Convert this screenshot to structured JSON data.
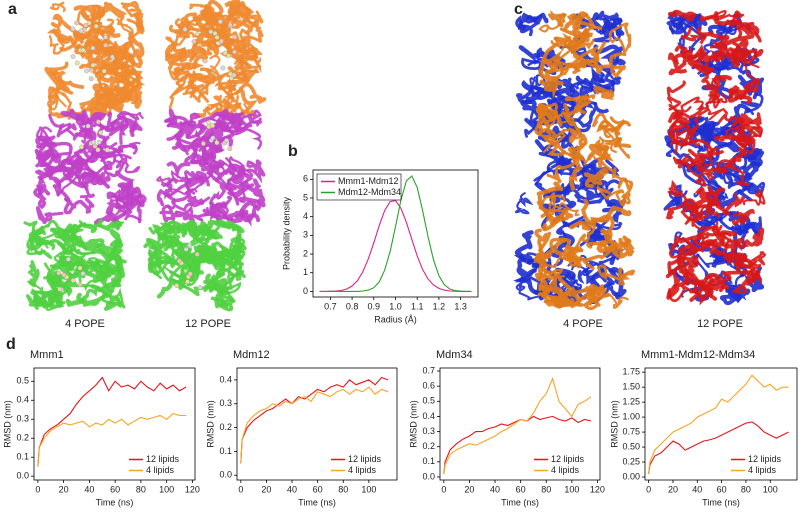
{
  "panel_labels": [
    "a",
    "b",
    "c",
    "d"
  ],
  "structure_labels": [
    "4 POPE",
    "12 POPE",
    "4 POPE",
    "12 POPE"
  ],
  "chart_data": [
    {
      "type": "line",
      "y_label": "Probability density",
      "x_label": "Radius (Å)",
      "legend": "upper left",
      "x": [
        0.65,
        0.675,
        0.7,
        0.725,
        0.75,
        0.775,
        0.8,
        0.825,
        0.85,
        0.875,
        0.9,
        0.925,
        0.95,
        0.975,
        1.0,
        1.025,
        1.05,
        1.075,
        1.1,
        1.125,
        1.15,
        1.175,
        1.2,
        1.225,
        1.25,
        1.275,
        1.3,
        1.325,
        1.35
      ],
      "series": [
        {
          "name": "Mmm1-Mdm12",
          "color": "#e0208a",
          "values": [
            0,
            0,
            0.01,
            0.02,
            0.05,
            0.13,
            0.29,
            0.58,
            1.06,
            1.75,
            2.6,
            3.52,
            4.32,
            4.81,
            4.86,
            4.45,
            3.7,
            2.79,
            1.9,
            1.18,
            0.66,
            0.34,
            0.16,
            0.07,
            0.02,
            0.01,
            0,
            0,
            0
          ]
        },
        {
          "name": "Mdm12-Mdm34",
          "color": "#2ca02c",
          "values": [
            0,
            0,
            0,
            0,
            0,
            0,
            0,
            0,
            0.02,
            0.07,
            0.2,
            0.51,
            1.13,
            2.13,
            3.47,
            4.88,
            5.92,
            6.18,
            5.57,
            4.33,
            2.91,
            1.69,
            0.84,
            0.36,
            0.13,
            0.04,
            0.01,
            0,
            0
          ]
        }
      ],
      "xlim": [
        0.62,
        1.38
      ],
      "ylim": [
        -0.3,
        6.5
      ],
      "xticks": [
        0.7,
        0.8,
        0.9,
        {
          "value": 1.0,
          "label": "1.0"
        },
        1.1,
        1.2,
        1.3
      ],
      "yticks": [
        0,
        1,
        2,
        3,
        4,
        5,
        6
      ]
    },
    {
      "type": "line",
      "title": "Mmm1",
      "y_label": "RMSD (nm)",
      "x_label": "Time (ns)",
      "legend": "lower right",
      "x": [
        0,
        1,
        5,
        10,
        15,
        20,
        25,
        30,
        35,
        40,
        45,
        50,
        55,
        60,
        65,
        70,
        75,
        80,
        85,
        90,
        95,
        100,
        105,
        110,
        115
      ],
      "series": [
        {
          "name": "12 lipids",
          "color": "#e8141c",
          "values": [
            0.05,
            0.15,
            0.22,
            0.25,
            0.27,
            0.3,
            0.33,
            0.38,
            0.42,
            0.45,
            0.48,
            0.52,
            0.45,
            0.5,
            0.47,
            0.48,
            0.46,
            0.5,
            0.47,
            0.45,
            0.49,
            0.46,
            0.48,
            0.45,
            0.47
          ]
        },
        {
          "name": "4 lipids",
          "color": "#f5a623",
          "values": [
            0.05,
            0.15,
            0.2,
            0.24,
            0.26,
            0.28,
            0.27,
            0.28,
            0.29,
            0.26,
            0.28,
            0.27,
            0.3,
            0.28,
            0.3,
            0.27,
            0.29,
            0.31,
            0.3,
            0.31,
            0.32,
            0.3,
            0.33,
            0.32,
            0.32
          ]
        }
      ],
      "xlim": [
        -3,
        122
      ],
      "ylim": [
        -0.02,
        0.57
      ],
      "xticks": [
        0,
        20,
        40,
        60,
        80,
        100,
        120
      ],
      "yticks": [
        {
          "value": 0,
          "label": "0.0"
        },
        0.1,
        0.2,
        0.3,
        0.4,
        0.5
      ]
    },
    {
      "type": "line",
      "title": "Mdm12",
      "y_label": "RMSD (nm)",
      "x_label": "Time (ns)",
      "legend": "lower right",
      "x": [
        0,
        1,
        5,
        10,
        15,
        20,
        25,
        30,
        35,
        40,
        45,
        50,
        55,
        60,
        65,
        70,
        75,
        80,
        85,
        90,
        95,
        100,
        105,
        110,
        115
      ],
      "series": [
        {
          "name": "12 lipids",
          "color": "#e8141c",
          "values": [
            0.05,
            0.15,
            0.2,
            0.23,
            0.25,
            0.27,
            0.28,
            0.3,
            0.32,
            0.3,
            0.33,
            0.32,
            0.34,
            0.36,
            0.35,
            0.37,
            0.38,
            0.37,
            0.4,
            0.38,
            0.39,
            0.4,
            0.38,
            0.41,
            0.4
          ]
        },
        {
          "name": "4 lipids",
          "color": "#f5a623",
          "values": [
            0.05,
            0.15,
            0.22,
            0.25,
            0.27,
            0.28,
            0.3,
            0.29,
            0.31,
            0.3,
            0.32,
            0.33,
            0.31,
            0.35,
            0.34,
            0.33,
            0.35,
            0.36,
            0.34,
            0.36,
            0.35,
            0.37,
            0.34,
            0.36,
            0.35
          ]
        }
      ],
      "xlim": [
        -3,
        122
      ],
      "ylim": [
        -0.02,
        0.45
      ],
      "xticks": [
        0,
        20,
        40,
        60,
        80,
        100
      ],
      "yticks": [
        {
          "value": 0,
          "label": "0.0"
        },
        0.1,
        0.2,
        0.3,
        0.4
      ]
    },
    {
      "type": "line",
      "title": "Mdm34",
      "y_label": "RMSD (nm)",
      "x_label": "Time (ns)",
      "legend": "lower right",
      "x": [
        0,
        1,
        5,
        10,
        15,
        20,
        25,
        30,
        35,
        40,
        45,
        50,
        55,
        60,
        65,
        70,
        75,
        80,
        85,
        90,
        95,
        100,
        105,
        110,
        115
      ],
      "series": [
        {
          "name": "12 lipids",
          "color": "#e8141c",
          "values": [
            0.02,
            0.1,
            0.18,
            0.22,
            0.25,
            0.27,
            0.3,
            0.3,
            0.32,
            0.33,
            0.35,
            0.34,
            0.36,
            0.38,
            0.37,
            0.4,
            0.38,
            0.39,
            0.4,
            0.38,
            0.37,
            0.39,
            0.36,
            0.38,
            0.37
          ]
        },
        {
          "name": "4 lipids",
          "color": "#f5a623",
          "values": [
            0.02,
            0.08,
            0.15,
            0.18,
            0.2,
            0.22,
            0.21,
            0.23,
            0.25,
            0.27,
            0.3,
            0.32,
            0.35,
            0.38,
            0.37,
            0.42,
            0.5,
            0.55,
            0.65,
            0.5,
            0.45,
            0.4,
            0.48,
            0.5,
            0.53
          ]
        }
      ],
      "xlim": [
        -3,
        122
      ],
      "ylim": [
        -0.02,
        0.72
      ],
      "xticks": [
        0,
        20,
        40,
        60,
        80,
        100,
        120
      ],
      "yticks": [
        {
          "value": 0,
          "label": "0.0"
        },
        0.1,
        0.2,
        0.3,
        0.4,
        0.5,
        0.6,
        0.7
      ]
    },
    {
      "type": "line",
      "title": "Mmm1-Mdm12-Mdm34",
      "y_label": "RMSD (nm)",
      "x_label": "Time (ns)",
      "legend": "lower right",
      "x": [
        0,
        1,
        5,
        10,
        15,
        20,
        25,
        30,
        35,
        40,
        45,
        50,
        55,
        60,
        65,
        70,
        75,
        80,
        85,
        90,
        95,
        100,
        105,
        110,
        115
      ],
      "series": [
        {
          "name": "12 lipids",
          "color": "#e8141c",
          "values": [
            0.05,
            0.2,
            0.35,
            0.4,
            0.5,
            0.6,
            0.55,
            0.45,
            0.5,
            0.55,
            0.6,
            0.62,
            0.65,
            0.7,
            0.75,
            0.8,
            0.85,
            0.9,
            0.92,
            0.85,
            0.75,
            0.7,
            0.65,
            0.7,
            0.75
          ]
        },
        {
          "name": "4 lipids",
          "color": "#f5a623",
          "values": [
            0.05,
            0.25,
            0.45,
            0.55,
            0.65,
            0.75,
            0.8,
            0.85,
            0.9,
            1.0,
            1.05,
            1.1,
            1.15,
            1.3,
            1.25,
            1.35,
            1.45,
            1.55,
            1.7,
            1.6,
            1.5,
            1.55,
            1.45,
            1.5,
            1.5
          ]
        }
      ],
      "xlim": [
        -3,
        122
      ],
      "ylim": [
        -0.05,
        1.82
      ],
      "xticks": [
        0,
        20,
        40,
        60,
        80,
        100
      ],
      "yticks": [
        {
          "value": 0,
          "label": "0.00"
        },
        {
          "value": 0.25,
          "label": "0.25"
        },
        {
          "value": 0.5,
          "label": "0.50"
        },
        {
          "value": 0.75,
          "label": "0.75"
        },
        {
          "value": 1,
          "label": "1.00"
        },
        {
          "value": 1.25,
          "label": "1.25"
        },
        {
          "value": 1.5,
          "label": "1.50"
        },
        {
          "value": 1.75,
          "label": "1.75"
        }
      ]
    }
  ]
}
